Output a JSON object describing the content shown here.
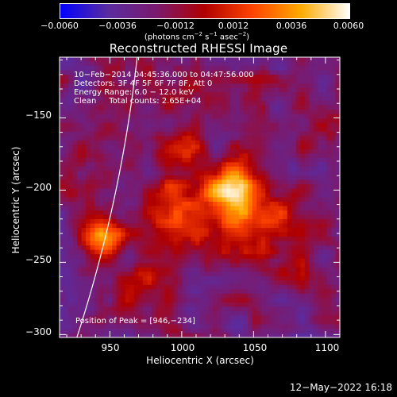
{
  "colorbar": {
    "ticks": [
      "−0.0060",
      "−0.0036",
      "−0.0012",
      "0.0012",
      "0.0036",
      "0.0060"
    ],
    "units_main": "(photons cm",
    "units_exp1": "−2",
    "units_mid1": " s",
    "units_exp2": "−1",
    "units_mid2": " asec",
    "units_exp3": "−2",
    "units_end": ")"
  },
  "chart_data": {
    "type": "heatmap",
    "title": "Reconstructed RHESSI Image",
    "xlabel": "Heliocentric X (arcsec)",
    "ylabel": "Heliocentric Y (arcsec)",
    "xlim": [
      915,
      1110
    ],
    "ylim": [
      -302,
      -108
    ],
    "xticks": [
      950,
      1000,
      1050,
      1100
    ],
    "yticks": [
      -150,
      -200,
      -250,
      -300
    ],
    "ytick_labels": [
      "−150",
      "−200",
      "−250",
      "−300"
    ],
    "zlim": [
      -0.006,
      0.006
    ],
    "colormap": [
      "#0000ff",
      "#5a2ca0",
      "#7a1a6e",
      "#b00000",
      "#ff4400",
      "#ffaa00",
      "#ffffff"
    ],
    "sources": [
      {
        "x": 946,
        "y": -234,
        "peak": 0.006,
        "sigma": 9
      },
      {
        "x": 1038,
        "y": -199,
        "peak": 0.0052,
        "sigma": 13
      },
      {
        "x": 1010,
        "y": -215,
        "peak": 0.003,
        "sigma": 22
      },
      {
        "x": 1050,
        "y": -235,
        "peak": 0.0026,
        "sigma": 18
      },
      {
        "x": 995,
        "y": -175,
        "peak": 0.0022,
        "sigma": 15
      },
      {
        "x": 1075,
        "y": -220,
        "peak": 0.0018,
        "sigma": 14
      },
      {
        "x": 935,
        "y": -175,
        "peak": 0.0016,
        "sigma": 12
      },
      {
        "x": 985,
        "y": -265,
        "peak": 0.0014,
        "sigma": 16
      },
      {
        "x": 1080,
        "y": -255,
        "peak": 0.0012,
        "sigma": 12
      }
    ],
    "limb": {
      "color": "#ffffff"
    },
    "info": {
      "line1": "10−Feb−2014 04:45:36.000 to 04:47:56.000",
      "line2": "Detectors: 3F 4F 5F 6F 7F 8F, Att 0",
      "line3": "Energy Range: 6.0 − 12.0 keV",
      "line4": "Clean     Total counts: 2.65E+04"
    },
    "peak_label": "Position of Peak = [946,−234]"
  },
  "timestamp": "12−May−2022 16:18"
}
